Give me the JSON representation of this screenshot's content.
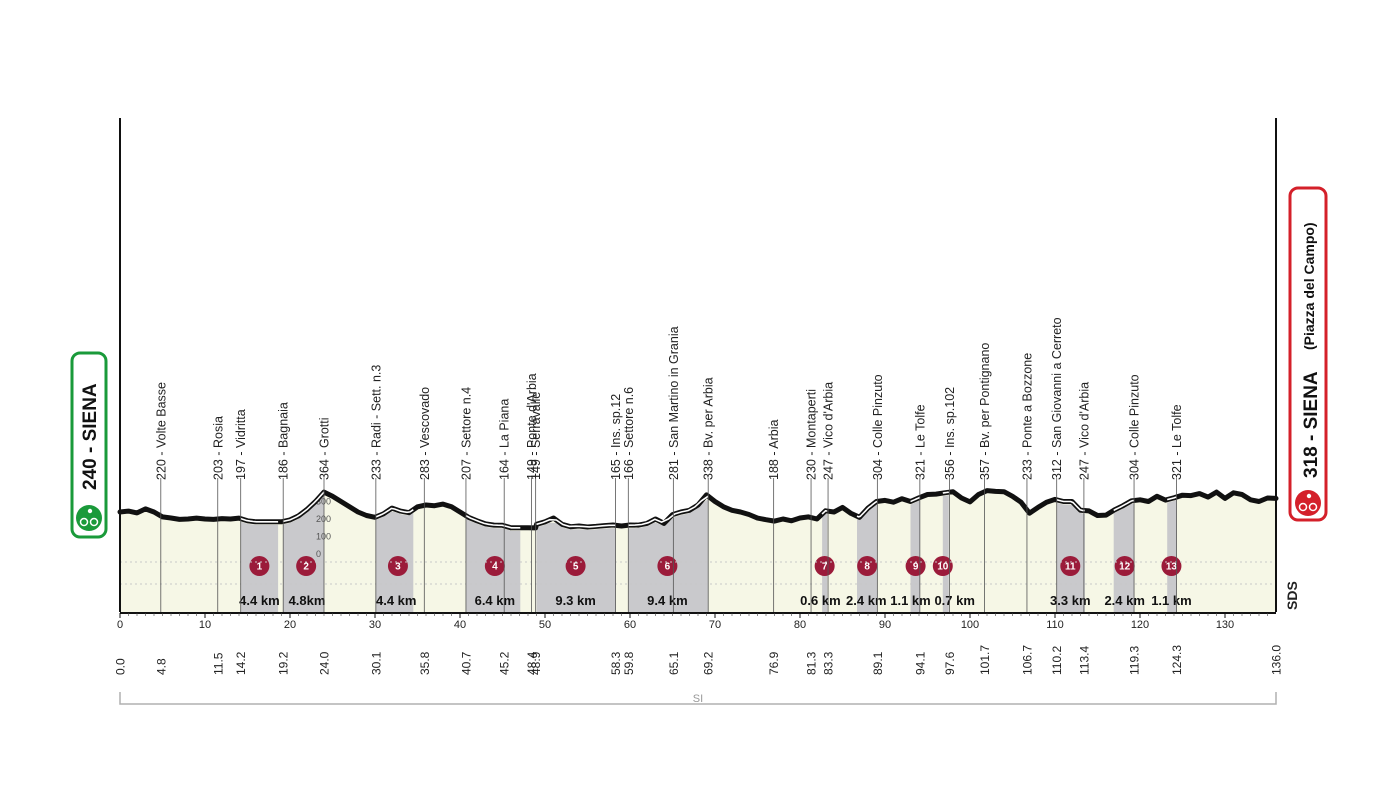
{
  "chart_data": {
    "type": "area",
    "title": "",
    "xlabel": "",
    "ylabel": "",
    "xlim": [
      0,
      136
    ],
    "ylim": [
      0,
      400
    ],
    "x_ticks": [
      0,
      10,
      20,
      30,
      40,
      50,
      60,
      70,
      80,
      90,
      100,
      110,
      120,
      130
    ],
    "y_ticks": [
      0,
      100,
      200,
      300
    ],
    "start": {
      "label": "240 - SIENA",
      "km": "0.0",
      "color": "#1a9a3a"
    },
    "finish": {
      "label": "318 - SIENA",
      "sub": "(Piazza del Campo)",
      "km": "136.0",
      "color": "#d4202a"
    },
    "sector_color": "#c9c9cc",
    "sector_marker_color": "#9b1b3a",
    "fill_color": "#f6f7e6",
    "profile": [
      [
        0,
        240
      ],
      [
        1,
        245
      ],
      [
        2,
        235
      ],
      [
        3,
        258
      ],
      [
        4,
        240
      ],
      [
        5,
        212
      ],
      [
        6,
        206
      ],
      [
        7,
        198
      ],
      [
        8,
        200
      ],
      [
        9,
        205
      ],
      [
        10,
        200
      ],
      [
        11,
        198
      ],
      [
        12,
        202
      ],
      [
        13,
        200
      ],
      [
        14,
        205
      ],
      [
        15,
        190
      ],
      [
        16,
        184
      ],
      [
        17,
        184
      ],
      [
        18,
        184
      ],
      [
        19,
        184
      ],
      [
        20,
        195
      ],
      [
        21,
        218
      ],
      [
        22,
        255
      ],
      [
        23,
        300
      ],
      [
        24,
        354
      ],
      [
        25,
        330
      ],
      [
        26,
        300
      ],
      [
        27,
        270
      ],
      [
        28,
        240
      ],
      [
        29,
        220
      ],
      [
        30,
        210
      ],
      [
        31,
        230
      ],
      [
        32,
        262
      ],
      [
        33,
        245
      ],
      [
        34,
        236
      ],
      [
        35,
        270
      ],
      [
        36,
        280
      ],
      [
        37,
        276
      ],
      [
        38,
        285
      ],
      [
        39,
        270
      ],
      [
        40,
        240
      ],
      [
        41,
        210
      ],
      [
        42,
        190
      ],
      [
        43,
        172
      ],
      [
        44,
        165
      ],
      [
        45,
        164
      ],
      [
        46,
        150
      ],
      [
        47,
        150
      ],
      [
        48,
        150
      ],
      [
        48.9,
        149
      ],
      [
        49,
        170
      ],
      [
        50,
        184
      ],
      [
        51,
        206
      ],
      [
        52,
        170
      ],
      [
        53,
        156
      ],
      [
        54,
        160
      ],
      [
        55,
        154
      ],
      [
        56,
        158
      ],
      [
        57,
        162
      ],
      [
        58,
        166
      ],
      [
        59,
        160
      ],
      [
        60,
        166
      ],
      [
        61,
        165
      ],
      [
        62,
        175
      ],
      [
        63,
        200
      ],
      [
        64,
        175
      ],
      [
        65,
        225
      ],
      [
        66,
        240
      ],
      [
        67,
        250
      ],
      [
        68,
        280
      ],
      [
        69,
        338
      ],
      [
        70,
        300
      ],
      [
        71,
        270
      ],
      [
        72,
        250
      ],
      [
        73,
        240
      ],
      [
        74,
        226
      ],
      [
        75,
        205
      ],
      [
        76,
        196
      ],
      [
        77,
        188
      ],
      [
        78,
        200
      ],
      [
        79,
        190
      ],
      [
        80,
        206
      ],
      [
        81,
        212
      ],
      [
        82,
        200
      ],
      [
        83,
        247
      ],
      [
        84,
        240
      ],
      [
        85,
        266
      ],
      [
        86,
        232
      ],
      [
        87,
        210
      ],
      [
        88,
        262
      ],
      [
        89,
        300
      ],
      [
        90,
        306
      ],
      [
        91,
        296
      ],
      [
        92,
        316
      ],
      [
        93,
        300
      ],
      [
        94,
        321
      ],
      [
        95,
        340
      ],
      [
        96,
        342
      ],
      [
        97,
        350
      ],
      [
        98,
        356
      ],
      [
        99,
        320
      ],
      [
        100,
        298
      ],
      [
        101,
        340
      ],
      [
        102,
        362
      ],
      [
        103,
        358
      ],
      [
        104,
        356
      ],
      [
        105,
        330
      ],
      [
        106,
        296
      ],
      [
        107,
        233
      ],
      [
        108,
        266
      ],
      [
        109,
        296
      ],
      [
        110,
        312
      ],
      [
        111,
        300
      ],
      [
        112,
        300
      ],
      [
        113,
        250
      ],
      [
        114,
        246
      ],
      [
        115,
        220
      ],
      [
        116,
        222
      ],
      [
        117,
        252
      ],
      [
        118,
        276
      ],
      [
        119,
        304
      ],
      [
        120,
        310
      ],
      [
        121,
        300
      ],
      [
        122,
        330
      ],
      [
        123,
        308
      ],
      [
        124,
        321
      ],
      [
        125,
        336
      ],
      [
        126,
        334
      ],
      [
        127,
        345
      ],
      [
        128,
        325
      ],
      [
        129,
        354
      ],
      [
        130,
        318
      ],
      [
        131,
        350
      ],
      [
        132,
        340
      ],
      [
        133,
        310
      ],
      [
        134,
        300
      ],
      [
        135,
        320
      ],
      [
        136,
        318
      ]
    ],
    "waypoints": [
      {
        "km": 4.8,
        "label": "220 - Volte Basse"
      },
      {
        "km": 11.5,
        "label": "203 - Rosia"
      },
      {
        "km": 14.2,
        "label": "197 - Vidritta"
      },
      {
        "km": 19.2,
        "label": "186 - Bagnaia"
      },
      {
        "km": 24.0,
        "label": "364 - Grotti"
      },
      {
        "km": 30.1,
        "label": "233 - Radi - Sett. n.3"
      },
      {
        "km": 35.8,
        "label": "283 - Vescovado"
      },
      {
        "km": 40.7,
        "label": "207 - Settore n.4"
      },
      {
        "km": 45.2,
        "label": "164 - La Piana"
      },
      {
        "km": 48.4,
        "label": "149 - Ponte d'Arbia"
      },
      {
        "km": 48.9,
        "label": "149 - Serravalle"
      },
      {
        "km": 58.3,
        "label": "165 - Ins. sp.12"
      },
      {
        "km": 59.8,
        "label": "166 - Settore n.6"
      },
      {
        "km": 65.1,
        "label": "281 - San Martino in Grania"
      },
      {
        "km": 69.2,
        "label": "338 - Bv. per Arbia"
      },
      {
        "km": 76.9,
        "label": "188 - Arbia"
      },
      {
        "km": 81.3,
        "label": "230 - Montaperti"
      },
      {
        "km": 83.3,
        "label": "247 - Vico d'Arbia"
      },
      {
        "km": 89.1,
        "label": "304 - Colle Pinzuto"
      },
      {
        "km": 94.1,
        "label": "321 - Le Tolfe"
      },
      {
        "km": 97.6,
        "label": "356 - Ins. sp.102"
      },
      {
        "km": 101.7,
        "label": "357 - Bv. per Pontignano"
      },
      {
        "km": 106.7,
        "label": "233 - Ponte a Bozzone"
      },
      {
        "km": 110.2,
        "label": "312 - San Giovanni a Cerreto"
      },
      {
        "km": 113.4,
        "label": "247 - Vico d'Arbia"
      },
      {
        "km": 119.3,
        "label": "304 - Colle Pinzuto"
      },
      {
        "km": 124.3,
        "label": "321 - Le Tolfe"
      }
    ],
    "sectors": [
      {
        "num": "1",
        "length": "4.4 km",
        "start": 14.2,
        "end": 18.6,
        "marker_km": 16.4,
        "length_km": 16.4
      },
      {
        "num": "2",
        "length": "4.8km",
        "start": 19.2,
        "end": 24.0,
        "marker_km": 21.9,
        "length_km": 22.0
      },
      {
        "num": "3",
        "length": "4.4 km",
        "start": 30.1,
        "end": 34.5,
        "marker_km": 32.7,
        "length_km": 32.5
      },
      {
        "num": "4",
        "length": "6.4 km",
        "start": 40.7,
        "end": 47.1,
        "marker_km": 44.1,
        "length_km": 44.1
      },
      {
        "num": "5",
        "length": "9.3 km",
        "start": 49.0,
        "end": 58.3,
        "marker_km": 53.6,
        "length_km": 53.6
      },
      {
        "num": "6",
        "length": "9.4 km",
        "start": 59.8,
        "end": 69.2,
        "marker_km": 64.4,
        "length_km": 64.4
      },
      {
        "num": "7",
        "length": "0.6 km",
        "start": 82.6,
        "end": 83.2,
        "marker_km": 82.9,
        "length_km": 82.4
      },
      {
        "num": "8",
        "length": "2.4 km",
        "start": 86.7,
        "end": 89.1,
        "marker_km": 87.9,
        "length_km": 87.8
      },
      {
        "num": "9",
        "length": "1.1 km",
        "start": 93.0,
        "end": 94.1,
        "marker_km": 93.6,
        "length_km": 93.0
      },
      {
        "num": "10",
        "length": "0.7 km",
        "start": 96.8,
        "end": 97.5,
        "marker_km": 96.8,
        "length_km": 98.2
      },
      {
        "num": "11",
        "length": "3.3 km",
        "start": 110.2,
        "end": 113.5,
        "marker_km": 111.8,
        "length_km": 111.8
      },
      {
        "num": "12",
        "length": "2.4 km",
        "start": 116.9,
        "end": 119.3,
        "marker_km": 118.2,
        "length_km": 118.2
      },
      {
        "num": "13",
        "length": "1.1 km",
        "start": 123.2,
        "end": 124.3,
        "marker_km": 123.7,
        "length_km": 123.7
      }
    ],
    "km_labels": [
      "0.0",
      "4.8",
      "11.5",
      "14.2",
      "19.2",
      "24.0",
      "30.1",
      "35.8",
      "40.7",
      "45.2",
      "48.4",
      "48.9",
      "58.3",
      "59.8",
      "65.1",
      "69.2",
      "76.9",
      "81.3",
      "83.3",
      "89.1",
      "94.1",
      "97.6",
      "101.7",
      "106.7",
      "110.2",
      "113.4",
      "119.3",
      "124.3",
      "136.0"
    ],
    "bottom_bracket_label": "SI",
    "right_label": "SDS"
  }
}
